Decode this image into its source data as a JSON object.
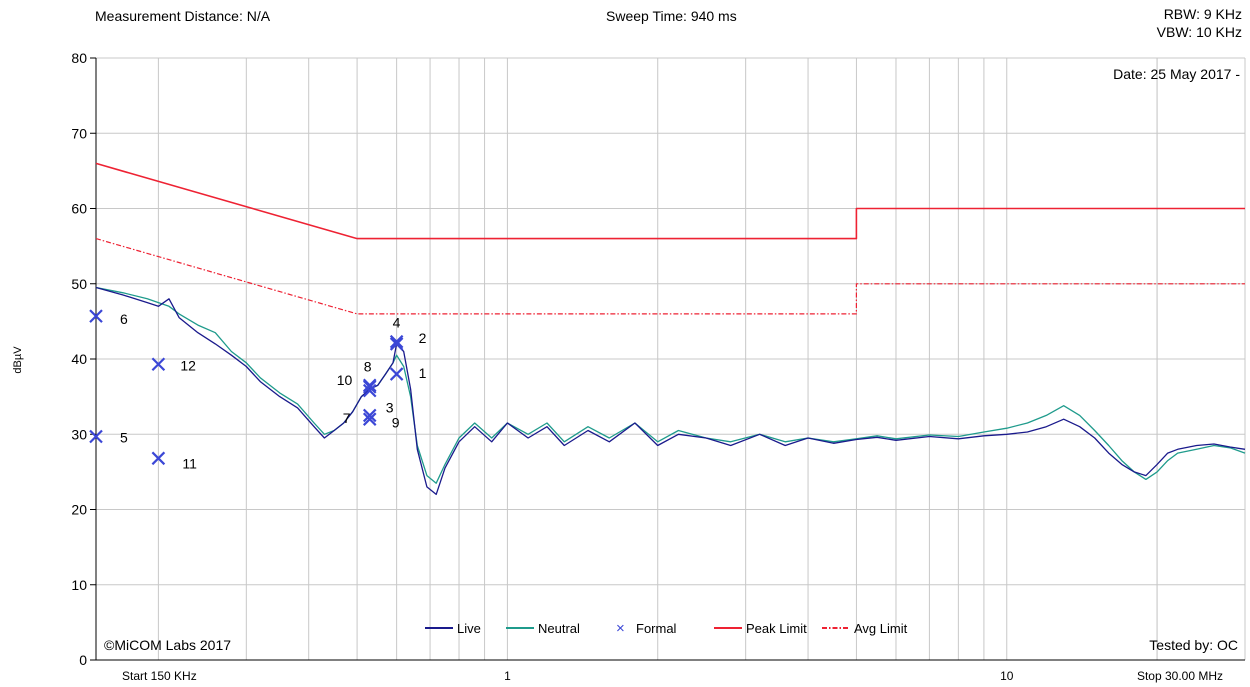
{
  "header": {
    "measurement_distance": "Measurement Distance: N/A",
    "sweep_time": "Sweep Time: 940 ms",
    "rbw": "RBW: 9 KHz",
    "vbw": "VBW: 10 KHz"
  },
  "date_label": "Date: 25 May 2017 -",
  "copyright": "©MiCOM Labs 2017",
  "tested_by": "Tested by: OC",
  "colors": {
    "live": "#1a1a8c",
    "neutral": "#1f9b8c",
    "formal": "#3b47d6",
    "limit": "#ee2233",
    "grid": "#c8c8c8"
  },
  "chart_data": {
    "type": "line",
    "x_scale": "log",
    "xlim_mhz": [
      0.15,
      30
    ],
    "ylim": [
      0,
      80
    ],
    "ylabel": "dBµV",
    "y_ticks": [
      0,
      10,
      20,
      30,
      40,
      50,
      60,
      70,
      80
    ],
    "x_tick_labels": [
      {
        "x": 0.15,
        "label": "Start 150 KHz"
      },
      {
        "x": 1,
        "label": "1"
      },
      {
        "x": 10,
        "label": "10"
      },
      {
        "x": 30,
        "label": "Stop 30.00 MHz"
      }
    ],
    "grid": true,
    "legend_position": "bottom-center",
    "legend": [
      {
        "label": "Live",
        "style": "line",
        "color": "#1a1a8c"
      },
      {
        "label": "Neutral",
        "style": "line",
        "color": "#1f9b8c"
      },
      {
        "label": "Formal",
        "style": "cross",
        "color": "#3b47d6"
      },
      {
        "label": "Peak Limit",
        "style": "line",
        "color": "#ee2233"
      },
      {
        "label": "Avg Limit",
        "style": "dashdot",
        "color": "#ee2233"
      }
    ],
    "series": [
      {
        "name": "Peak Limit",
        "points": [
          [
            0.15,
            66
          ],
          [
            0.5,
            56
          ],
          [
            5,
            56
          ],
          [
            5,
            60
          ],
          [
            30,
            60
          ]
        ]
      },
      {
        "name": "Avg Limit",
        "points": [
          [
            0.15,
            56
          ],
          [
            0.5,
            46
          ],
          [
            5,
            46
          ],
          [
            5,
            50
          ],
          [
            30,
            50
          ]
        ]
      },
      {
        "name": "Live",
        "points": [
          [
            0.15,
            49.5
          ],
          [
            0.17,
            48.5
          ],
          [
            0.19,
            47.5
          ],
          [
            0.2,
            47
          ],
          [
            0.21,
            48
          ],
          [
            0.22,
            45.5
          ],
          [
            0.24,
            43.5
          ],
          [
            0.26,
            42
          ],
          [
            0.28,
            40.5
          ],
          [
            0.3,
            39
          ],
          [
            0.32,
            37
          ],
          [
            0.35,
            35
          ],
          [
            0.38,
            33.5
          ],
          [
            0.41,
            31
          ],
          [
            0.43,
            29.5
          ],
          [
            0.45,
            30.5
          ],
          [
            0.47,
            31.5
          ],
          [
            0.49,
            33
          ],
          [
            0.51,
            35
          ],
          [
            0.53,
            36
          ],
          [
            0.55,
            36.5
          ],
          [
            0.57,
            38
          ],
          [
            0.59,
            39.5
          ],
          [
            0.6,
            42
          ],
          [
            0.62,
            41
          ],
          [
            0.64,
            36
          ],
          [
            0.66,
            28
          ],
          [
            0.69,
            23
          ],
          [
            0.72,
            22
          ],
          [
            0.75,
            25.5
          ],
          [
            0.8,
            29
          ],
          [
            0.86,
            31
          ],
          [
            0.93,
            29
          ],
          [
            1.0,
            31.5
          ],
          [
            1.1,
            29.5
          ],
          [
            1.2,
            31
          ],
          [
            1.3,
            28.5
          ],
          [
            1.45,
            30.5
          ],
          [
            1.6,
            29
          ],
          [
            1.8,
            31.5
          ],
          [
            2.0,
            28.5
          ],
          [
            2.2,
            30
          ],
          [
            2.5,
            29.5
          ],
          [
            2.8,
            28.5
          ],
          [
            3.2,
            30
          ],
          [
            3.6,
            28.5
          ],
          [
            4.0,
            29.5
          ],
          [
            4.5,
            28.8
          ],
          [
            5.0,
            29.3
          ],
          [
            5.5,
            29.6
          ],
          [
            6.0,
            29.2
          ],
          [
            7.0,
            29.7
          ],
          [
            8.0,
            29.4
          ],
          [
            9.0,
            29.8
          ],
          [
            10.0,
            30.0
          ],
          [
            11.0,
            30.3
          ],
          [
            12.0,
            31.0
          ],
          [
            13.0,
            32.0
          ],
          [
            14.0,
            31.0
          ],
          [
            15.0,
            29.5
          ],
          [
            16.0,
            27.5
          ],
          [
            17.0,
            26.0
          ],
          [
            18.0,
            25.0
          ],
          [
            19.0,
            24.5
          ],
          [
            20.0,
            26.0
          ],
          [
            21.0,
            27.5
          ],
          [
            22.0,
            28.0
          ],
          [
            24.0,
            28.5
          ],
          [
            26.0,
            28.7
          ],
          [
            28.0,
            28.3
          ],
          [
            30.0,
            28.0
          ]
        ]
      },
      {
        "name": "Neutral",
        "points": [
          [
            0.15,
            49.5
          ],
          [
            0.17,
            48.8
          ],
          [
            0.19,
            48
          ],
          [
            0.2,
            47.5
          ],
          [
            0.21,
            47
          ],
          [
            0.22,
            46
          ],
          [
            0.24,
            44.5
          ],
          [
            0.26,
            43.5
          ],
          [
            0.28,
            41
          ],
          [
            0.3,
            39.5
          ],
          [
            0.32,
            37.5
          ],
          [
            0.35,
            35.5
          ],
          [
            0.38,
            34
          ],
          [
            0.41,
            31.5
          ],
          [
            0.43,
            30
          ],
          [
            0.45,
            30.5
          ],
          [
            0.47,
            31.5
          ],
          [
            0.49,
            33
          ],
          [
            0.51,
            35
          ],
          [
            0.53,
            36
          ],
          [
            0.55,
            36.5
          ],
          [
            0.57,
            38
          ],
          [
            0.59,
            39.5
          ],
          [
            0.6,
            40.5
          ],
          [
            0.62,
            39
          ],
          [
            0.64,
            35
          ],
          [
            0.66,
            28.5
          ],
          [
            0.69,
            24.5
          ],
          [
            0.72,
            23.5
          ],
          [
            0.75,
            26
          ],
          [
            0.8,
            29.5
          ],
          [
            0.86,
            31.5
          ],
          [
            0.93,
            29.5
          ],
          [
            1.0,
            31.5
          ],
          [
            1.1,
            30
          ],
          [
            1.2,
            31.5
          ],
          [
            1.3,
            29
          ],
          [
            1.45,
            31
          ],
          [
            1.6,
            29.5
          ],
          [
            1.8,
            31.5
          ],
          [
            2.0,
            29
          ],
          [
            2.2,
            30.5
          ],
          [
            2.5,
            29.5
          ],
          [
            2.8,
            29
          ],
          [
            3.2,
            30
          ],
          [
            3.6,
            29
          ],
          [
            4.0,
            29.5
          ],
          [
            4.5,
            29.0
          ],
          [
            5.0,
            29.4
          ],
          [
            5.5,
            29.8
          ],
          [
            6.0,
            29.4
          ],
          [
            7.0,
            29.9
          ],
          [
            8.0,
            29.7
          ],
          [
            9.0,
            30.3
          ],
          [
            10.0,
            30.8
          ],
          [
            11.0,
            31.5
          ],
          [
            12.0,
            32.5
          ],
          [
            13.0,
            33.8
          ],
          [
            14.0,
            32.5
          ],
          [
            15.0,
            30.5
          ],
          [
            16.0,
            28.5
          ],
          [
            17.0,
            26.5
          ],
          [
            18.0,
            25.0
          ],
          [
            19.0,
            24.0
          ],
          [
            20.0,
            25.0
          ],
          [
            21.0,
            26.5
          ],
          [
            22.0,
            27.5
          ],
          [
            24.0,
            28.0
          ],
          [
            26.0,
            28.5
          ],
          [
            28.0,
            28.2
          ],
          [
            30.0,
            27.5
          ]
        ]
      }
    ],
    "markers": [
      {
        "id": "1",
        "x": 0.6,
        "y": 38
      },
      {
        "id": "2",
        "x": 0.6,
        "y": 42
      },
      {
        "id": "3",
        "x": 0.53,
        "y": 35.8
      },
      {
        "id": "4",
        "x": 0.6,
        "y": 42.3
      },
      {
        "id": "5",
        "x": 0.15,
        "y": 29.7
      },
      {
        "id": "6",
        "x": 0.15,
        "y": 45.7
      },
      {
        "id": "7",
        "x": 0.53,
        "y": 32
      },
      {
        "id": "8",
        "x": 0.53,
        "y": 36.5
      },
      {
        "id": "9",
        "x": 0.53,
        "y": 32.5
      },
      {
        "id": "10",
        "x": 0.53,
        "y": 36.3
      },
      {
        "id": "11",
        "x": 0.2,
        "y": 26.8
      },
      {
        "id": "12",
        "x": 0.2,
        "y": 39.3
      }
    ]
  }
}
